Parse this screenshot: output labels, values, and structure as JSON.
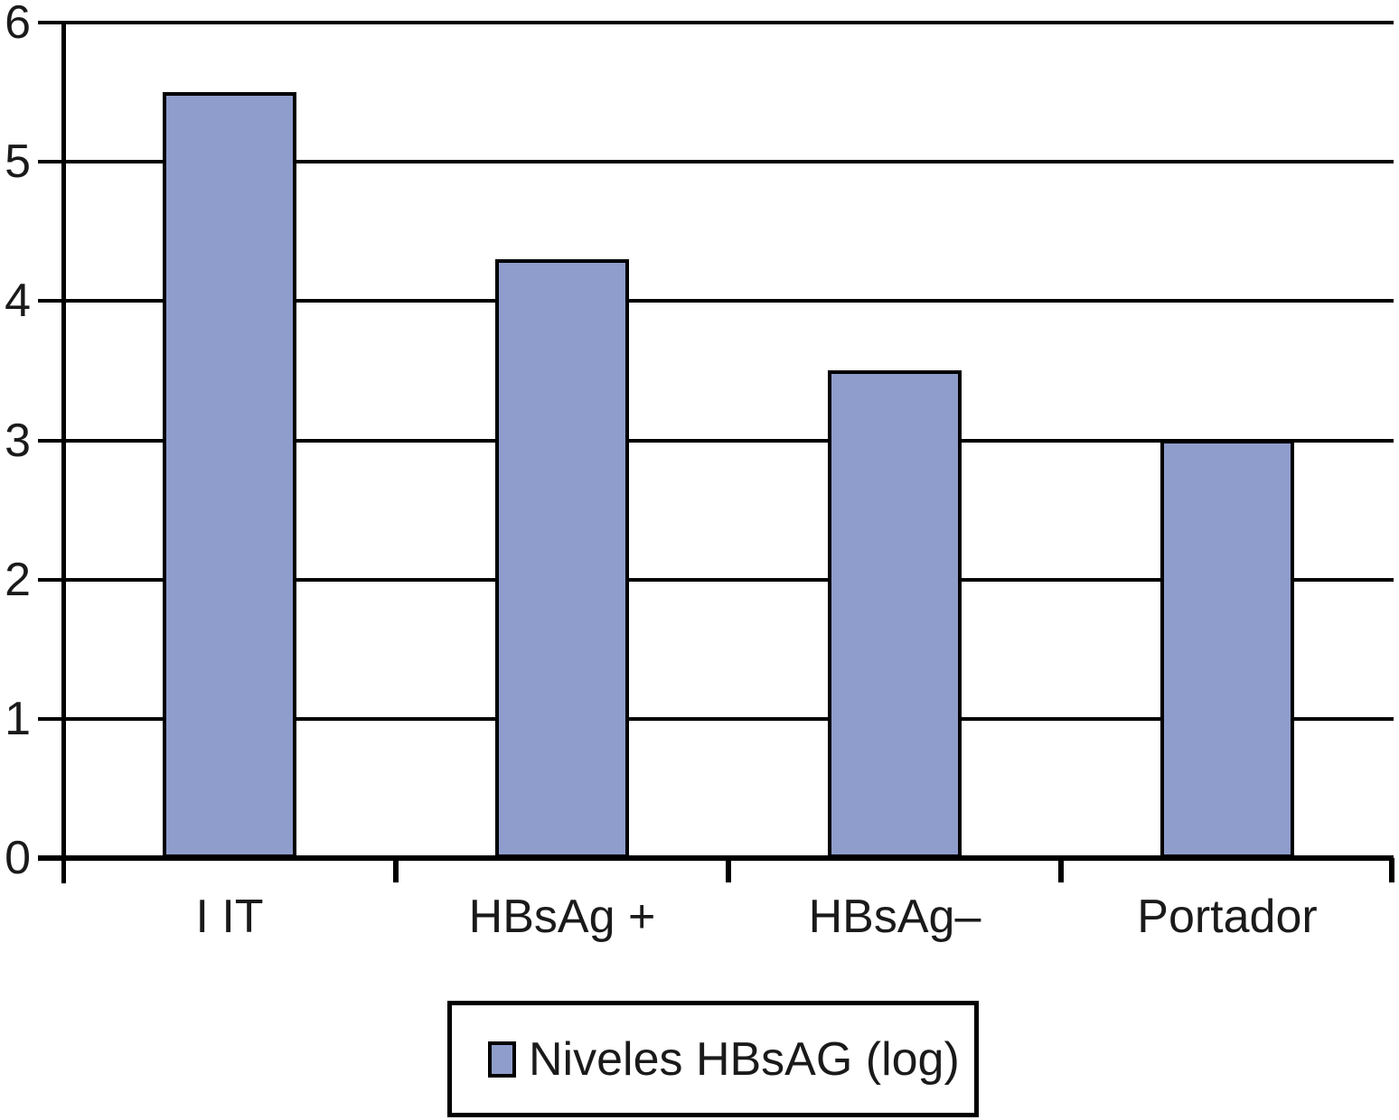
{
  "chart_data": {
    "type": "bar",
    "categories": [
      "I IT",
      "HBsAg +",
      "HBsAg–",
      "Portador"
    ],
    "values": [
      5.5,
      4.3,
      3.5,
      3
    ],
    "title": "",
    "xlabel": "",
    "ylabel": "",
    "ylim": [
      0,
      6
    ],
    "yticks": [
      0,
      1,
      2,
      3,
      4,
      5,
      6
    ],
    "grid": "horizontal",
    "legend": {
      "label": "Niveles HBsAG (log)",
      "position": "bottom-center"
    },
    "colors": {
      "bar_fill": "#8f9dcc",
      "bar_border": "#000000",
      "axis": "#000000",
      "grid": "#000000",
      "text": "#1a1a1a",
      "background": "#ffffff"
    }
  }
}
